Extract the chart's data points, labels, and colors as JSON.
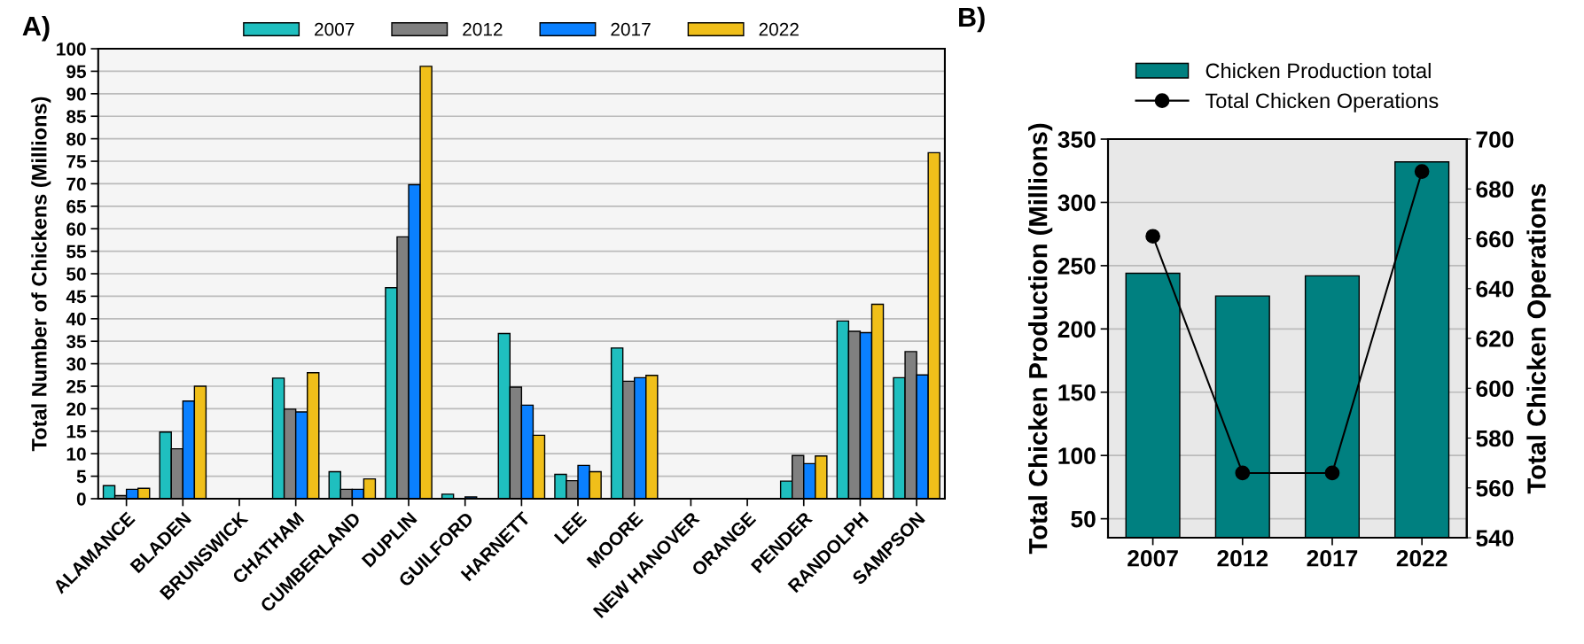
{
  "chart_data": [
    {
      "type": "bar",
      "annotations": [
        "A)"
      ],
      "ylabel": "Total Number of Chickens (Millions)",
      "categories": [
        "ALAMANCE",
        "BLADEN",
        "BRUNSWICK",
        "CHATHAM",
        "CUMBERLAND",
        "DUPLIN",
        "GUILFORD",
        "HARNETT",
        "LEE",
        "MOORE",
        "NEW HANOVER",
        "ORANGE",
        "PENDER",
        "RANDOLPH",
        "SAMPSON"
      ],
      "series": [
        {
          "name": "2007",
          "color": "#1fbfbf",
          "values": [
            2.9,
            14.8,
            null,
            26.8,
            6.0,
            46.9,
            1.0,
            36.7,
            5.4,
            33.5,
            null,
            null,
            3.9,
            39.5,
            26.9
          ]
        },
        {
          "name": "2012",
          "color": "#808080",
          "values": [
            0.7,
            11.1,
            null,
            19.9,
            2.1,
            58.2,
            null,
            24.8,
            4.0,
            26.1,
            null,
            null,
            9.6,
            37.2,
            32.7
          ]
        },
        {
          "name": "2017",
          "color": "#0a80ff",
          "values": [
            2.1,
            21.7,
            null,
            19.3,
            2.1,
            69.8,
            0.4,
            20.8,
            7.4,
            26.9,
            null,
            null,
            7.8,
            36.9,
            27.5
          ]
        },
        {
          "name": "2022",
          "color": "#f0bf1a",
          "values": [
            2.3,
            25.0,
            null,
            28.0,
            4.4,
            96.1,
            null,
            14.1,
            6.0,
            27.4,
            null,
            null,
            9.5,
            43.2,
            76.9
          ]
        }
      ],
      "ylim": [
        0,
        100
      ],
      "yticks": [
        0,
        5,
        10,
        15,
        20,
        25,
        30,
        35,
        40,
        45,
        50,
        55,
        60,
        65,
        70,
        75,
        80,
        85,
        90,
        95,
        100
      ],
      "grid": "y",
      "legend": "top"
    },
    {
      "type": "bar",
      "annotations": [
        "B)"
      ],
      "ylabel": "Total Chicken Production (Millions)",
      "y2label": "Total Chicken Operations",
      "categories": [
        "2007",
        "2012",
        "2017",
        "2022"
      ],
      "series": [
        {
          "name": "Chicken Production total",
          "color": "#008080",
          "values": [
            244,
            226,
            242,
            332
          ]
        },
        {
          "name": "Total Chicken Operations",
          "type": "line",
          "axis": "y2",
          "color": "#000000",
          "marker": "circle",
          "values": [
            661,
            566,
            566,
            687
          ]
        }
      ],
      "ylim": [
        35,
        350
      ],
      "yticks": [
        50,
        100,
        150,
        200,
        250,
        300,
        350
      ],
      "y2lim": [
        540,
        700
      ],
      "y2ticks": [
        540,
        560,
        580,
        600,
        620,
        640,
        660,
        680,
        700
      ],
      "grid": "y",
      "legend": "top"
    }
  ]
}
